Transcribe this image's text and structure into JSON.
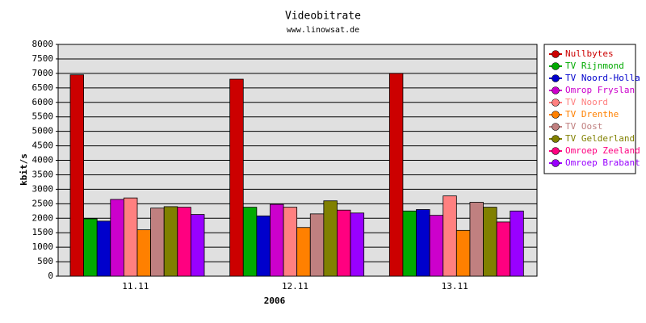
{
  "chart_data": {
    "type": "bar",
    "title": "Videobitrate",
    "subtitle": "www.linowsat.de",
    "x_label": "2006",
    "y_label": "kbit/s",
    "categories": [
      "11.11",
      "12.11",
      "13.11"
    ],
    "series": [
      {
        "name": "Nullbytes",
        "color": "#cc0000",
        "values": [
          6950,
          6800,
          7000
        ]
      },
      {
        "name": "TV Rijnmond",
        "color": "#00aa00",
        "values": [
          1980,
          2380,
          2250
        ]
      },
      {
        "name": "TV Noord-Holla",
        "color": "#0000cc",
        "values": [
          1900,
          2080,
          2300
        ]
      },
      {
        "name": "Omrop Fryslan",
        "color": "#cc00cc",
        "values": [
          2650,
          2480,
          2100
        ]
      },
      {
        "name": "TV Noord",
        "color": "#ff8080",
        "values": [
          2700,
          2380,
          2770
        ]
      },
      {
        "name": "TV Drenthe",
        "color": "#ff8000",
        "values": [
          1600,
          1680,
          1580
        ]
      },
      {
        "name": "TV Oost",
        "color": "#c08080",
        "values": [
          2350,
          2150,
          2550
        ]
      },
      {
        "name": "TV Gelderland",
        "color": "#808000",
        "values": [
          2400,
          2600,
          2380
        ]
      },
      {
        "name": "Omroep Zeeland",
        "color": "#ff0080",
        "values": [
          2380,
          2280,
          1870
        ]
      },
      {
        "name": "Omroep Brabant",
        "color": "#9900ff",
        "values": [
          2130,
          2180,
          2250
        ]
      }
    ],
    "ylim": [
      0,
      8000
    ],
    "yticks": [
      0,
      500,
      1000,
      1500,
      2000,
      2500,
      3000,
      3500,
      4000,
      4500,
      5000,
      5500,
      6000,
      6500,
      7000,
      7500,
      8000
    ],
    "grid": true,
    "legend_position": "right",
    "plot_background": "#e0e0e0"
  }
}
